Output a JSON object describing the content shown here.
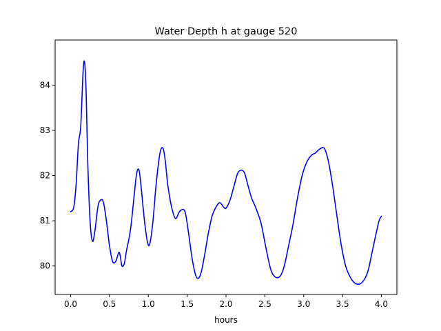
{
  "chart_data": {
    "type": "line",
    "title": "Water Depth h at gauge 520",
    "xlabel": "hours",
    "ylabel": "",
    "xlim": [
      -0.2,
      4.2
    ],
    "ylim": [
      79.37,
      85.0
    ],
    "xticks": [
      0.0,
      0.5,
      1.0,
      1.5,
      2.0,
      2.5,
      3.0,
      3.5,
      4.0
    ],
    "xtick_labels": [
      "0.0",
      "0.5",
      "1.0",
      "1.5",
      "2.0",
      "2.5",
      "3.0",
      "3.5",
      "4.0"
    ],
    "yticks": [
      80,
      81,
      82,
      83,
      84
    ],
    "ytick_labels": [
      "80",
      "81",
      "82",
      "83",
      "84"
    ],
    "grid": false,
    "series": [
      {
        "color": "#0000ff",
        "x": [
          0.0,
          0.04,
          0.07,
          0.1,
          0.13,
          0.16,
          0.18,
          0.2,
          0.22,
          0.25,
          0.28,
          0.31,
          0.35,
          0.38,
          0.42,
          0.46,
          0.5,
          0.54,
          0.58,
          0.62,
          0.64,
          0.66,
          0.69,
          0.72,
          0.77,
          0.82,
          0.85,
          0.88,
          0.91,
          0.95,
          0.99,
          1.02,
          1.06,
          1.1,
          1.15,
          1.19,
          1.22,
          1.25,
          1.3,
          1.35,
          1.4,
          1.45,
          1.48,
          1.52,
          1.57,
          1.62,
          1.67,
          1.72,
          1.77,
          1.82,
          1.87,
          1.92,
          1.97,
          2.0,
          2.05,
          2.1,
          2.15,
          2.2,
          2.24,
          2.28,
          2.33,
          2.38,
          2.45,
          2.52,
          2.58,
          2.64,
          2.7,
          2.75,
          2.8,
          2.86,
          2.92,
          2.98,
          3.04,
          3.1,
          3.15,
          3.2,
          3.25,
          3.28,
          3.32,
          3.37,
          3.42,
          3.48,
          3.54,
          3.6,
          3.66,
          3.72,
          3.78,
          3.83,
          3.88,
          3.93,
          3.97,
          4.0
        ],
        "y": [
          81.2,
          81.3,
          81.8,
          82.7,
          83.1,
          84.3,
          84.5,
          83.8,
          82.3,
          81.0,
          80.55,
          80.75,
          81.3,
          81.45,
          81.42,
          81.0,
          80.45,
          80.1,
          80.1,
          80.3,
          80.2,
          80.0,
          80.05,
          80.35,
          80.8,
          81.6,
          82.05,
          82.12,
          81.7,
          81.0,
          80.52,
          80.5,
          81.0,
          81.8,
          82.5,
          82.6,
          82.3,
          81.8,
          81.3,
          81.05,
          81.2,
          81.25,
          81.15,
          80.7,
          80.1,
          79.75,
          79.8,
          80.2,
          80.7,
          81.1,
          81.3,
          81.4,
          81.3,
          81.28,
          81.45,
          81.75,
          82.05,
          82.12,
          82.05,
          81.8,
          81.5,
          81.3,
          80.95,
          80.35,
          79.9,
          79.75,
          79.78,
          80.0,
          80.4,
          80.9,
          81.5,
          82.0,
          82.3,
          82.45,
          82.5,
          82.58,
          82.62,
          82.55,
          82.3,
          81.8,
          81.2,
          80.5,
          80.0,
          79.75,
          79.62,
          79.6,
          79.7,
          79.9,
          80.3,
          80.7,
          81.0,
          81.1
        ]
      }
    ]
  }
}
